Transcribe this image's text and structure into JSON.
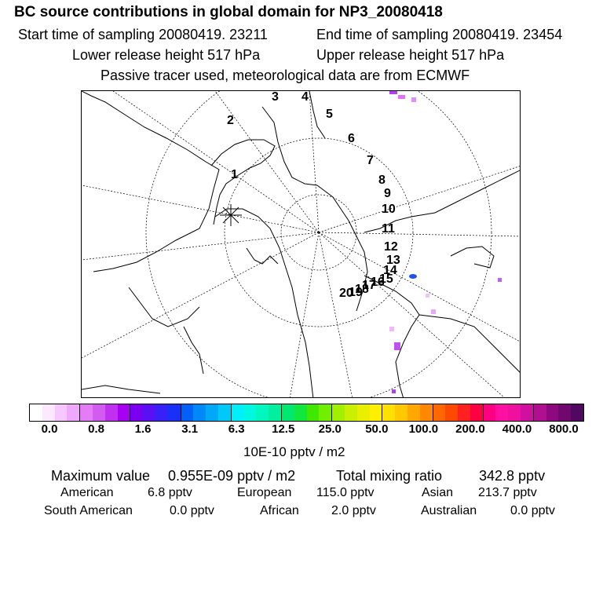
{
  "header": {
    "title": "BC  source contributions in global domain for NP3_20080418",
    "start_time": "Start time of sampling 20080419. 23211",
    "end_time": "End time of sampling 20080419. 23454",
    "lower_height": "Lower release height  517 hPa",
    "upper_height": "Upper release height  517 hPa",
    "tracer_note": "Passive tracer used, meteorological data are from ECMWF"
  },
  "map": {
    "trajectory_labels": [
      "1",
      "2",
      "3",
      "4",
      "5",
      "6",
      "7",
      "8",
      "9",
      "10",
      "11",
      "12",
      "13",
      "14",
      "15",
      "16",
      "17",
      "18",
      "19",
      "20"
    ]
  },
  "colorbar": {
    "colors": [
      "#ffffff",
      "#fce8ff",
      "#f7c8ff",
      "#f0a8ff",
      "#e47cf5",
      "#d25bf0",
      "#c030f0",
      "#a800f0",
      "#7a00f0",
      "#5a10f5",
      "#3820f8",
      "#1830f8",
      "#0060f8",
      "#0088f8",
      "#00a8f8",
      "#00c8f8",
      "#00eef8",
      "#00f8e0",
      "#00f8c0",
      "#00f0a0",
      "#00e870",
      "#10e840",
      "#40e800",
      "#70f000",
      "#a0f000",
      "#c8f000",
      "#e8f000",
      "#fff000",
      "#ffe000",
      "#ffc800",
      "#ffa800",
      "#ff8800",
      "#ff6800",
      "#ff4800",
      "#ff2020",
      "#ff0040",
      "#ff0080",
      "#ff10a0",
      "#f010a0",
      "#d010a0",
      "#b01090",
      "#900880",
      "#700870",
      "#500860"
    ],
    "tick_labels": [
      "0.0",
      "0.8",
      "1.6",
      "3.1",
      "6.3",
      "12.5",
      "25.0",
      "50.0",
      "100.0",
      "200.0",
      "400.0",
      "800.0"
    ],
    "unit": "10E-10 pptv / m2"
  },
  "summary": {
    "max_label": "Maximum value",
    "max_value": "0.955E-09 pptv / m2",
    "total_label": "Total mixing ratio",
    "total_value": "342.8 pptv",
    "sources": [
      {
        "name": "American",
        "value": "6.8 pptv"
      },
      {
        "name": "European",
        "value": "115.0 pptv"
      },
      {
        "name": "Asian",
        "value": "213.7 pptv"
      },
      {
        "name": "South American",
        "value": "0.0 pptv"
      },
      {
        "name": "African",
        "value": "2.0 pptv"
      },
      {
        "name": "Australian",
        "value": "0.0 pptv"
      }
    ]
  }
}
